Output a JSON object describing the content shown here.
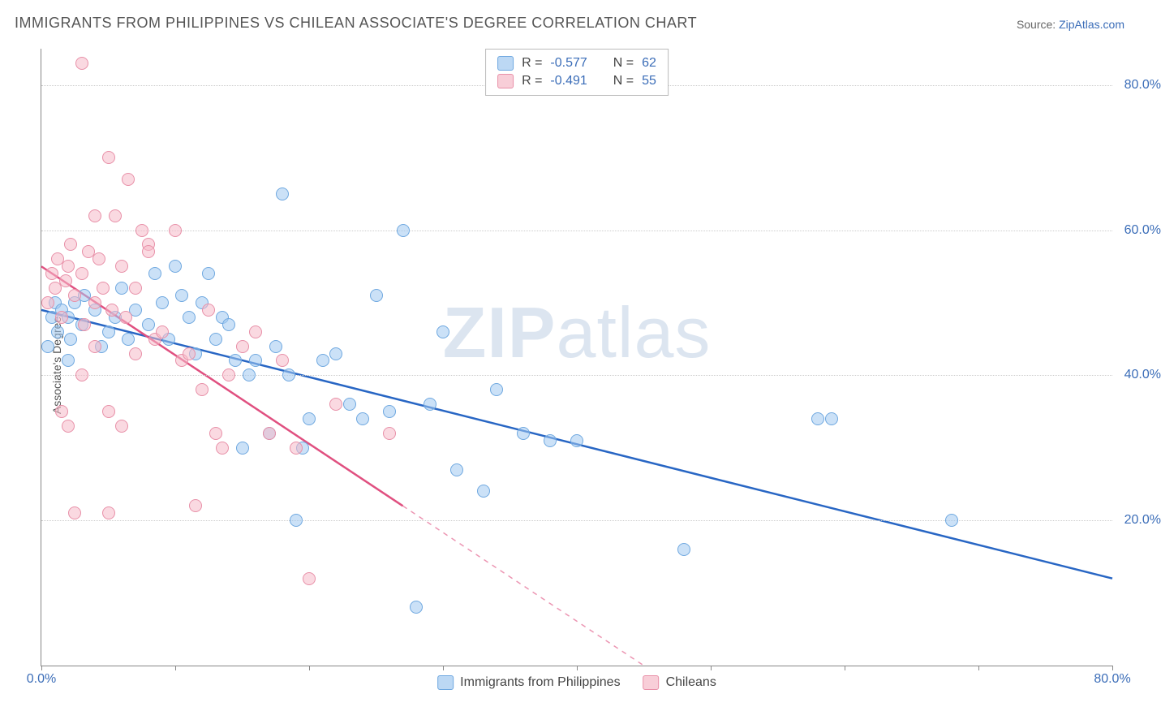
{
  "title": "IMMIGRANTS FROM PHILIPPINES VS CHILEAN ASSOCIATE'S DEGREE CORRELATION CHART",
  "source_prefix": "Source: ",
  "source_name": "ZipAtlas.com",
  "y_axis_label": "Associate's Degree",
  "watermark_a": "ZIP",
  "watermark_b": "atlas",
  "x_domain": [
    0,
    80
  ],
  "y_domain": [
    0,
    85
  ],
  "x_ticks": [
    0,
    10,
    20,
    30,
    40,
    50,
    60,
    70,
    80
  ],
  "x_tick_labels": {
    "0": "0.0%",
    "80": "80.0%"
  },
  "y_ticks": [
    20,
    40,
    60,
    80
  ],
  "y_tick_labels": {
    "20": "20.0%",
    "40": "40.0%",
    "60": "60.0%",
    "80": "80.0%"
  },
  "colors": {
    "blue_fill": "rgba(160,200,240,0.55)",
    "blue_stroke": "#6fa8e0",
    "blue_line": "#2866c4",
    "pink_fill": "rgba(245,185,200,0.55)",
    "pink_stroke": "#e890a8",
    "pink_line": "#e05080",
    "tick_text": "#3b6db8",
    "grid": "#cccccc"
  },
  "series": [
    {
      "key": "philippines",
      "name": "Immigrants from Philippines",
      "color": "blue",
      "R": "-0.577",
      "N": "62",
      "trend": {
        "x1": 0,
        "y1": 49,
        "x2": 80,
        "y2": 12,
        "extrapolate_from_x": 80
      },
      "points": [
        [
          0.5,
          44
        ],
        [
          0.8,
          48
        ],
        [
          1,
          50
        ],
        [
          1.2,
          46
        ],
        [
          1.5,
          49
        ],
        [
          2,
          48
        ],
        [
          2.2,
          45
        ],
        [
          2.5,
          50
        ],
        [
          3,
          47
        ],
        [
          3.2,
          51
        ],
        [
          4,
          49
        ],
        [
          4.5,
          44
        ],
        [
          5,
          46
        ],
        [
          5.5,
          48
        ],
        [
          6,
          52
        ],
        [
          6.5,
          45
        ],
        [
          7,
          49
        ],
        [
          8,
          47
        ],
        [
          8.5,
          54
        ],
        [
          9,
          50
        ],
        [
          9.5,
          45
        ],
        [
          10,
          55
        ],
        [
          10.5,
          51
        ],
        [
          11,
          48
        ],
        [
          11.5,
          43
        ],
        [
          12,
          50
        ],
        [
          12.5,
          54
        ],
        [
          13,
          45
        ],
        [
          13.5,
          48
        ],
        [
          14,
          47
        ],
        [
          14.5,
          42
        ],
        [
          15,
          30
        ],
        [
          15.5,
          40
        ],
        [
          16,
          42
        ],
        [
          17,
          32
        ],
        [
          17.5,
          44
        ],
        [
          18,
          65
        ],
        [
          18.5,
          40
        ],
        [
          19,
          20
        ],
        [
          19.5,
          30
        ],
        [
          20,
          34
        ],
        [
          21,
          42
        ],
        [
          22,
          43
        ],
        [
          23,
          36
        ],
        [
          24,
          34
        ],
        [
          25,
          51
        ],
        [
          26,
          35
        ],
        [
          27,
          60
        ],
        [
          28,
          8
        ],
        [
          29,
          36
        ],
        [
          30,
          46
        ],
        [
          31,
          27
        ],
        [
          33,
          24
        ],
        [
          34,
          38
        ],
        [
          36,
          32
        ],
        [
          38,
          31
        ],
        [
          40,
          31
        ],
        [
          48,
          16
        ],
        [
          58,
          34
        ],
        [
          68,
          20
        ],
        [
          59,
          34
        ],
        [
          2,
          42
        ]
      ]
    },
    {
      "key": "chileans",
      "name": "Chileans",
      "color": "pink",
      "R": "-0.491",
      "N": "55",
      "trend": {
        "x1": 0,
        "y1": 55,
        "x2": 27,
        "y2": 22,
        "extrapolate_from_x": 27
      },
      "points": [
        [
          0.5,
          50
        ],
        [
          0.8,
          54
        ],
        [
          1,
          52
        ],
        [
          1.2,
          56
        ],
        [
          1.5,
          48
        ],
        [
          1.8,
          53
        ],
        [
          2,
          55
        ],
        [
          2.2,
          58
        ],
        [
          2.5,
          51
        ],
        [
          3,
          54
        ],
        [
          3.2,
          47
        ],
        [
          3.5,
          57
        ],
        [
          4,
          50
        ],
        [
          4.3,
          56
        ],
        [
          4.6,
          52
        ],
        [
          5,
          70
        ],
        [
          5.3,
          49
        ],
        [
          5.5,
          62
        ],
        [
          6,
          55
        ],
        [
          6.3,
          48
        ],
        [
          6.5,
          67
        ],
        [
          7,
          52
        ],
        [
          7.5,
          60
        ],
        [
          8,
          58
        ],
        [
          8.5,
          45
        ],
        [
          3,
          83
        ],
        [
          4,
          62
        ],
        [
          5,
          35
        ],
        [
          1.5,
          35
        ],
        [
          2,
          33
        ],
        [
          2.5,
          21
        ],
        [
          3,
          40
        ],
        [
          4,
          44
        ],
        [
          5,
          21
        ],
        [
          6,
          33
        ],
        [
          7,
          43
        ],
        [
          8,
          57
        ],
        [
          9,
          46
        ],
        [
          10,
          60
        ],
        [
          10.5,
          42
        ],
        [
          11,
          43
        ],
        [
          11.5,
          22
        ],
        [
          12,
          38
        ],
        [
          12.5,
          49
        ],
        [
          13,
          32
        ],
        [
          13.5,
          30
        ],
        [
          14,
          40
        ],
        [
          15,
          44
        ],
        [
          16,
          46
        ],
        [
          17,
          32
        ],
        [
          18,
          42
        ],
        [
          19,
          30
        ],
        [
          20,
          12
        ],
        [
          22,
          36
        ],
        [
          26,
          32
        ]
      ]
    }
  ],
  "legend_top": {
    "R_label": "R =",
    "N_label": "N ="
  },
  "legend_bottom": [
    {
      "series": "philippines"
    },
    {
      "series": "chileans"
    }
  ]
}
